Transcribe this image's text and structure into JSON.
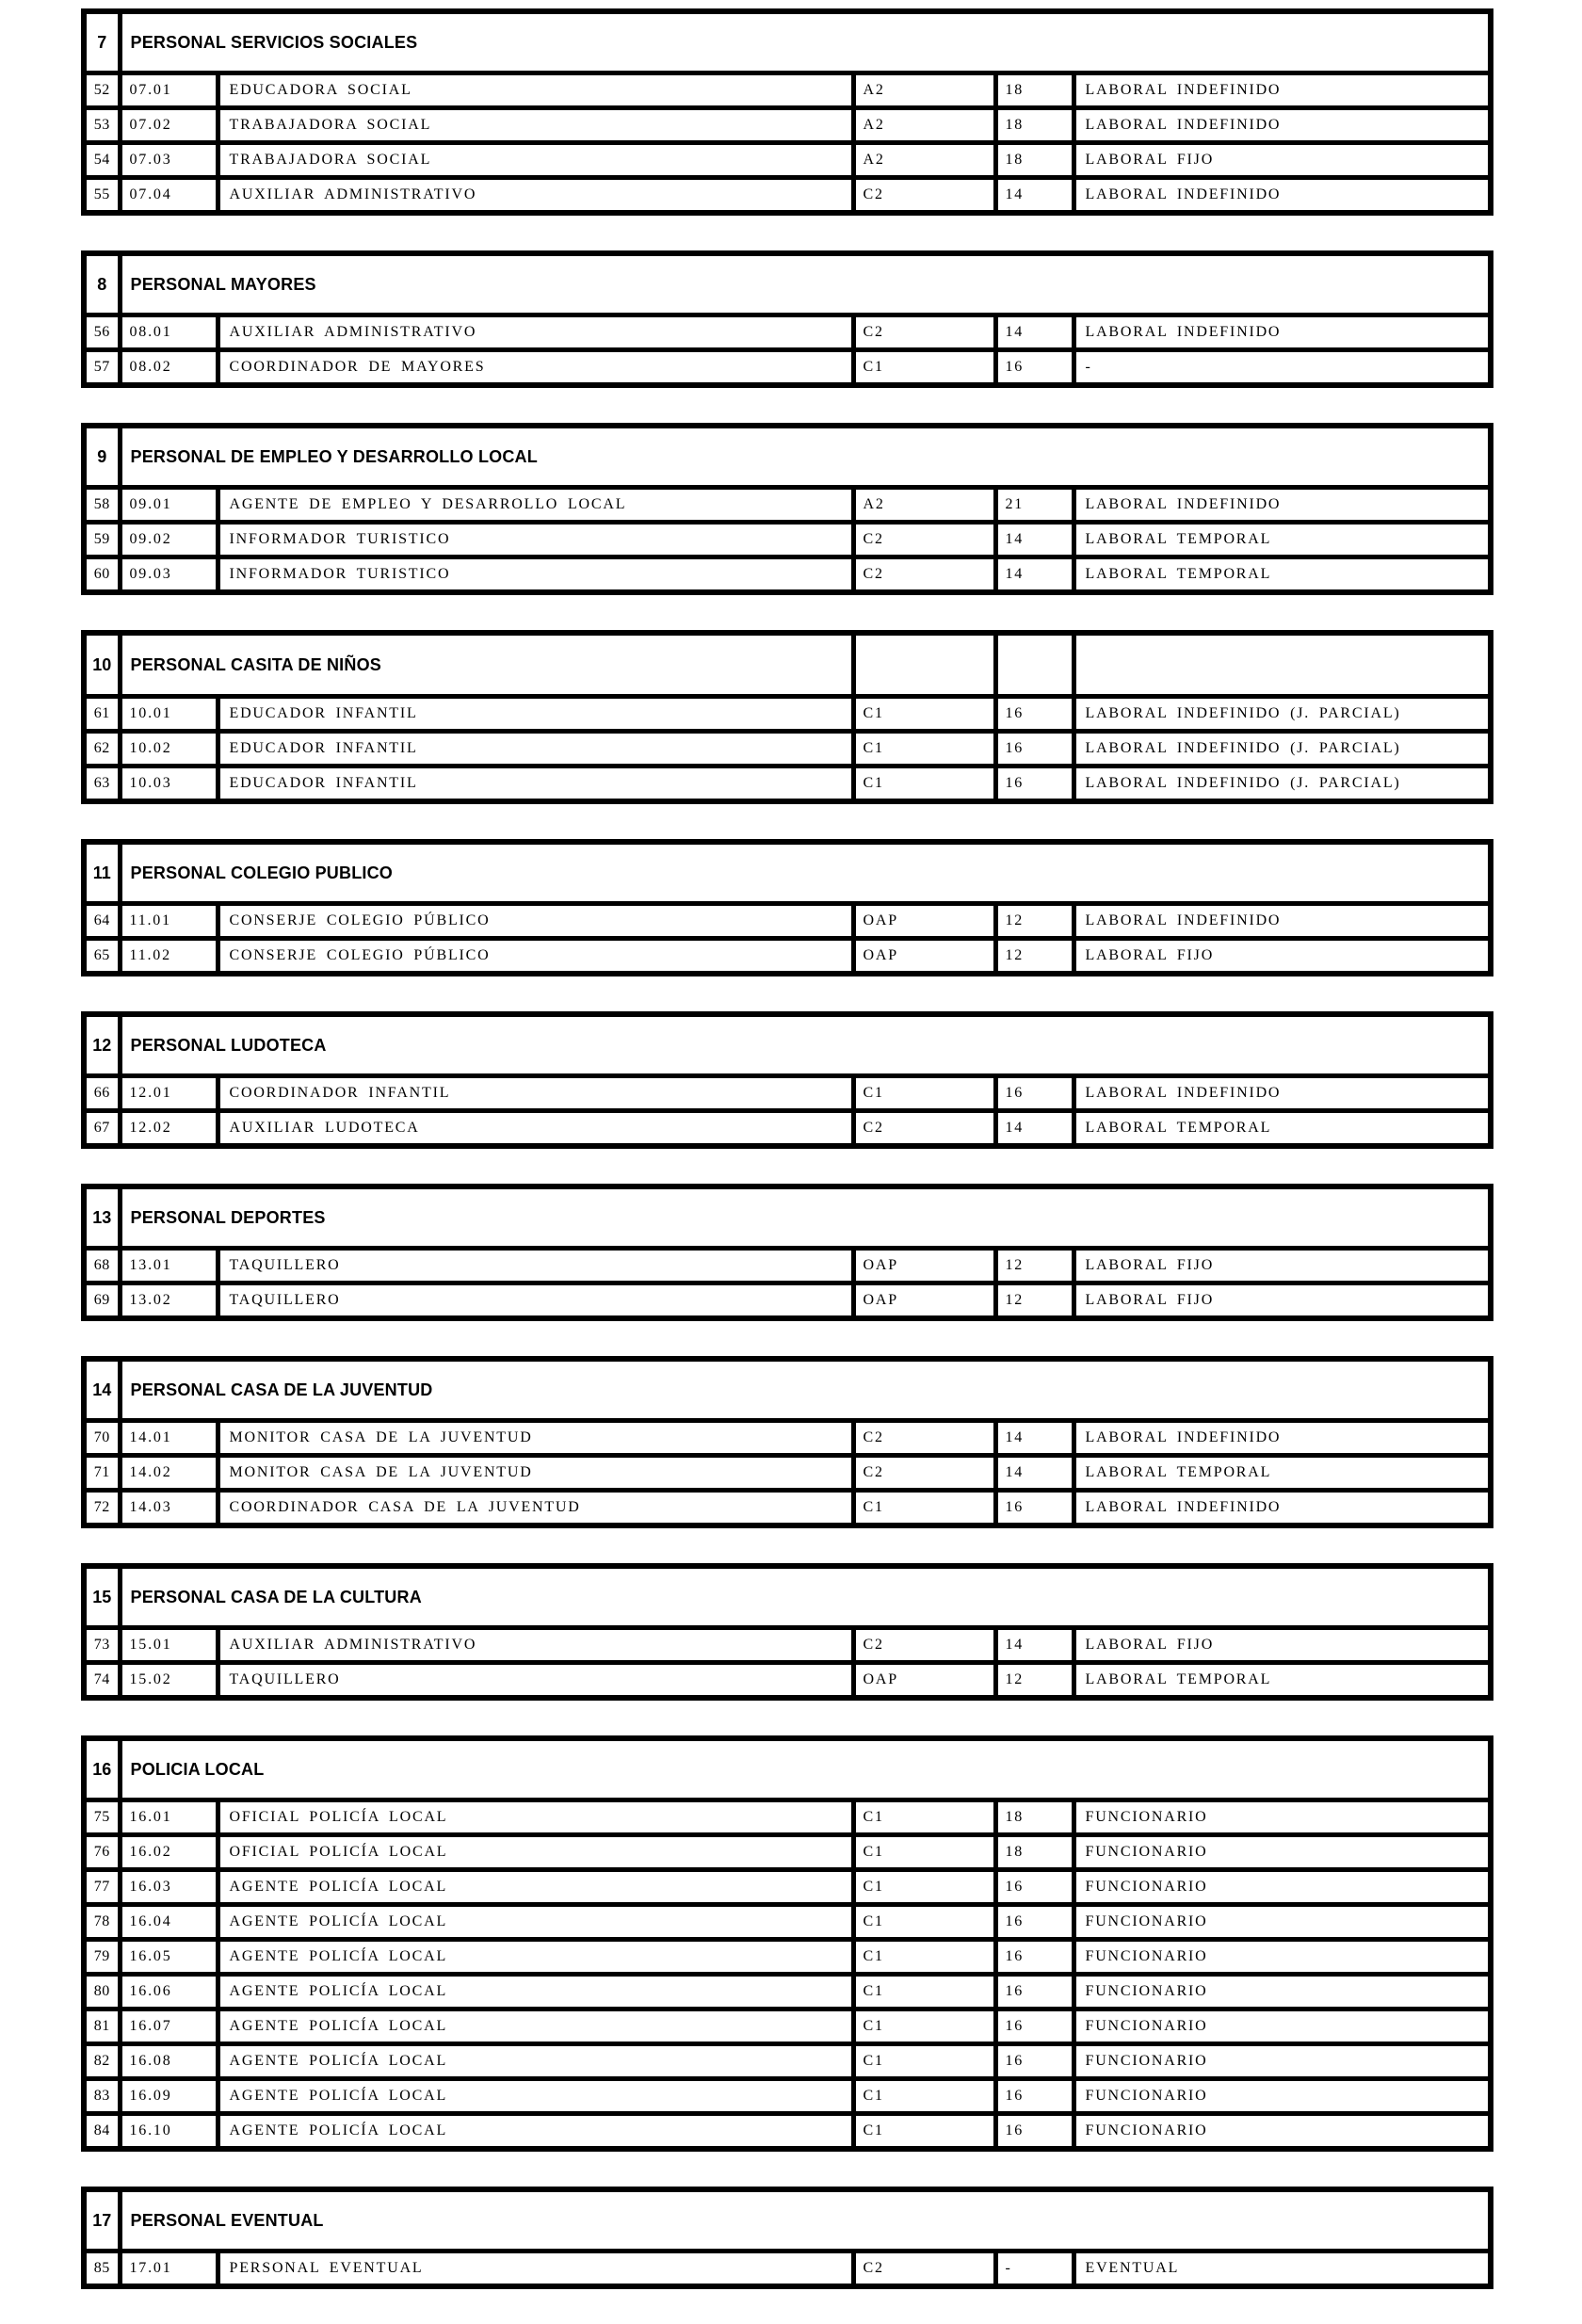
{
  "colors": {
    "section_header_bg": "#bfbfbf",
    "border": "#000000",
    "row_bg": "#ffffff",
    "text": "#000000"
  },
  "document": {
    "sections": [
      {
        "num": "7",
        "title": "PERSONAL SERVICIOS SOCIALES",
        "split_header": false,
        "rows": [
          {
            "id": "52",
            "code": "07.01",
            "name": "EDUCADORA SOCIAL",
            "group": "A2",
            "level": "18",
            "type": "LABORAL INDEFINIDO"
          },
          {
            "id": "53",
            "code": "07.02",
            "name": "TRABAJADORA SOCIAL",
            "group": "A2",
            "level": "18",
            "type": "LABORAL INDEFINIDO"
          },
          {
            "id": "54",
            "code": "07.03",
            "name": "TRABAJADORA SOCIAL",
            "group": "A2",
            "level": "18",
            "type": "LABORAL FIJO"
          },
          {
            "id": "55",
            "code": "07.04",
            "name": "AUXILIAR ADMINISTRATIVO",
            "group": "C2",
            "level": "14",
            "type": "LABORAL INDEFINIDO"
          }
        ]
      },
      {
        "num": "8",
        "title": "PERSONAL MAYORES",
        "split_header": false,
        "rows": [
          {
            "id": "56",
            "code": "08.01",
            "name": "AUXILIAR ADMINISTRATIVO",
            "group": "C2",
            "level": "14",
            "type": "LABORAL INDEFINIDO"
          },
          {
            "id": "57",
            "code": "08.02",
            "name": "COORDINADOR DE MAYORES",
            "group": "C1",
            "level": "16",
            "type": "-"
          }
        ]
      },
      {
        "num": "9",
        "title": "PERSONAL DE EMPLEO Y DESARROLLO LOCAL",
        "split_header": false,
        "rows": [
          {
            "id": "58",
            "code": "09.01",
            "name": "AGENTE DE EMPLEO Y DESARROLLO LOCAL",
            "group": "A2",
            "level": "21",
            "type": "LABORAL INDEFINIDO"
          },
          {
            "id": "59",
            "code": "09.02",
            "name": "INFORMADOR TURISTICO",
            "group": "C2",
            "level": "14",
            "type": "LABORAL TEMPORAL"
          },
          {
            "id": "60",
            "code": "09.03",
            "name": "INFORMADOR TURISTICO",
            "group": "C2",
            "level": "14",
            "type": "LABORAL TEMPORAL"
          }
        ]
      },
      {
        "num": "10",
        "title": "PERSONAL CASITA DE NIÑOS",
        "split_header": true,
        "rows": [
          {
            "id": "61",
            "code": "10.01",
            "name": "EDUCADOR INFANTIL",
            "group": "C1",
            "level": "16",
            "type": "LABORAL INDEFINIDO (J. PARCIAL)"
          },
          {
            "id": "62",
            "code": "10.02",
            "name": "EDUCADOR INFANTIL",
            "group": "C1",
            "level": "16",
            "type": "LABORAL INDEFINIDO (J. PARCIAL)"
          },
          {
            "id": "63",
            "code": "10.03",
            "name": "EDUCADOR INFANTIL",
            "group": "C1",
            "level": "16",
            "type": "LABORAL INDEFINIDO (J. PARCIAL)"
          }
        ]
      },
      {
        "num": "11",
        "title": "PERSONAL  COLEGIO PUBLICO",
        "split_header": false,
        "rows": [
          {
            "id": "64",
            "code": "11.01",
            "name": "CONSERJE COLEGIO PÚBLICO",
            "group": "OAP",
            "level": "12",
            "type": "LABORAL INDEFINIDO"
          },
          {
            "id": "65",
            "code": "11.02",
            "name": "CONSERJE COLEGIO PÚBLICO",
            "group": "OAP",
            "level": "12",
            "type": "LABORAL FIJO"
          }
        ]
      },
      {
        "num": "12",
        "title": "PERSONAL  LUDOTECA",
        "split_header": false,
        "rows": [
          {
            "id": "66",
            "code": "12.01",
            "name": "COORDINADOR INFANTIL",
            "group": "C1",
            "level": "16",
            "type": "LABORAL INDEFINIDO"
          },
          {
            "id": "67",
            "code": "12.02",
            "name": "AUXILIAR LUDOTECA",
            "group": "C2",
            "level": "14",
            "type": "LABORAL TEMPORAL"
          }
        ]
      },
      {
        "num": "13",
        "title": "PERSONAL DEPORTES",
        "split_header": false,
        "rows": [
          {
            "id": "68",
            "code": "13.01",
            "name": "TAQUILLERO",
            "group": "OAP",
            "level": "12",
            "type": "LABORAL FIJO"
          },
          {
            "id": "69",
            "code": "13.02",
            "name": "TAQUILLERO",
            "group": "OAP",
            "level": "12",
            "type": "LABORAL FIJO"
          }
        ]
      },
      {
        "num": "14",
        "title": "PERSONAL CASA DE LA JUVENTUD",
        "split_header": false,
        "rows": [
          {
            "id": "70",
            "code": "14.01",
            "name": "MONITOR CASA DE LA JUVENTUD",
            "group": "C2",
            "level": "14",
            "type": "LABORAL INDEFINIDO"
          },
          {
            "id": "71",
            "code": "14.02",
            "name": "MONITOR CASA DE LA JUVENTUD",
            "group": "C2",
            "level": "14",
            "type": "LABORAL TEMPORAL"
          },
          {
            "id": "72",
            "code": "14.03",
            "name": "COORDINADOR CASA DE LA JUVENTUD",
            "group": "C1",
            "level": "16",
            "type": "LABORAL INDEFINIDO"
          }
        ]
      },
      {
        "num": "15",
        "title": "PERSONAL CASA DE LA CULTURA",
        "split_header": false,
        "rows": [
          {
            "id": "73",
            "code": "15.01",
            "name": "AUXILIAR ADMINISTRATIVO",
            "group": "C2",
            "level": "14",
            "type": "LABORAL FIJO"
          },
          {
            "id": "74",
            "code": "15.02",
            "name": "TAQUILLERO",
            "group": "OAP",
            "level": "12",
            "type": "LABORAL TEMPORAL"
          }
        ]
      },
      {
        "num": "16",
        "title": "POLICIA LOCAL",
        "split_header": false,
        "rows": [
          {
            "id": "75",
            "code": "16.01",
            "name": "OFICIAL POLICÍA LOCAL",
            "group": "C1",
            "level": "18",
            "type": "FUNCIONARIO"
          },
          {
            "id": "76",
            "code": "16.02",
            "name": "OFICIAL POLICÍA LOCAL",
            "group": "C1",
            "level": "18",
            "type": "FUNCIONARIO"
          },
          {
            "id": "77",
            "code": "16.03",
            "name": "AGENTE POLICÍA LOCAL",
            "group": "C1",
            "level": "16",
            "type": "FUNCIONARIO"
          },
          {
            "id": "78",
            "code": "16.04",
            "name": "AGENTE POLICÍA LOCAL",
            "group": "C1",
            "level": "16",
            "type": "FUNCIONARIO"
          },
          {
            "id": "79",
            "code": "16.05",
            "name": "AGENTE POLICÍA LOCAL",
            "group": "C1",
            "level": "16",
            "type": "FUNCIONARIO"
          },
          {
            "id": "80",
            "code": "16.06",
            "name": "AGENTE POLICÍA LOCAL",
            "group": "C1",
            "level": "16",
            "type": "FUNCIONARIO"
          },
          {
            "id": "81",
            "code": "16.07",
            "name": "AGENTE POLICÍA LOCAL",
            "group": "C1",
            "level": "16",
            "type": "FUNCIONARIO"
          },
          {
            "id": "82",
            "code": "16.08",
            "name": "AGENTE POLICÍA LOCAL",
            "group": "C1",
            "level": "16",
            "type": "FUNCIONARIO"
          },
          {
            "id": "83",
            "code": "16.09",
            "name": "AGENTE POLICÍA LOCAL",
            "group": "C1",
            "level": "16",
            "type": "FUNCIONARIO"
          },
          {
            "id": "84",
            "code": "16.10",
            "name": "AGENTE POLICÍA LOCAL",
            "group": "C1",
            "level": "16",
            "type": "FUNCIONARIO"
          }
        ]
      },
      {
        "num": "17",
        "title": "PERSONAL EVENTUAL",
        "split_header": false,
        "rows": [
          {
            "id": "85",
            "code": "17.01",
            "name": "PERSONAL EVENTUAL",
            "group": "C2",
            "level": "-",
            "type": "EVENTUAL"
          }
        ]
      }
    ]
  }
}
